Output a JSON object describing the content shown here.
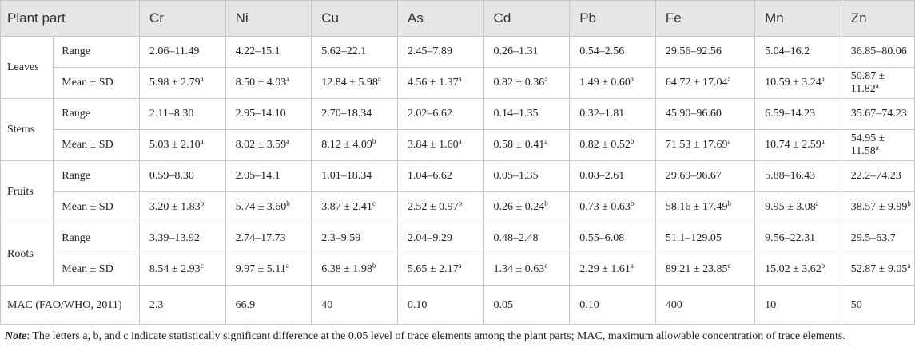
{
  "header": {
    "plant_part": "Plant part",
    "columns": [
      "Cr",
      "Ni",
      "Cu",
      "As",
      "Cd",
      "Pb",
      "Fe",
      "Mn",
      "Zn"
    ]
  },
  "groups": [
    {
      "part": "Leaves",
      "rows": [
        {
          "label": "Range",
          "cells": [
            {
              "v": "2.06–11.49"
            },
            {
              "v": "4.22–15.1"
            },
            {
              "v": "5.62–22.1"
            },
            {
              "v": "2.45–7.89"
            },
            {
              "v": "0.26–1.31"
            },
            {
              "v": "0.54–2.56"
            },
            {
              "v": "29.56–92.56"
            },
            {
              "v": "5.04–16.2"
            },
            {
              "v": "36.85–80.06"
            }
          ]
        },
        {
          "label": "Mean ± SD",
          "cells": [
            {
              "v": "5.98 ± 2.79",
              "s": "a"
            },
            {
              "v": "8.50 ± 4.03",
              "s": "a"
            },
            {
              "v": "12.84 ± 5.98",
              "s": "a"
            },
            {
              "v": "4.56 ± 1.37",
              "s": "a"
            },
            {
              "v": "0.82 ± 0.36",
              "s": "a"
            },
            {
              "v": "1.49 ± 0.60",
              "s": "a"
            },
            {
              "v": "64.72 ± 17.04",
              "s": "a"
            },
            {
              "v": "10.59 ± 3.24",
              "s": "a"
            },
            {
              "v": "50.87 ± 11.82",
              "s": "a"
            }
          ]
        }
      ]
    },
    {
      "part": "Stems",
      "rows": [
        {
          "label": "Range",
          "cells": [
            {
              "v": "2.11–8.30"
            },
            {
              "v": "2.95–14.10"
            },
            {
              "v": "2.70–18.34"
            },
            {
              "v": "2.02–6.62"
            },
            {
              "v": "0.14–1.35"
            },
            {
              "v": "0.32–1.81"
            },
            {
              "v": "45.90–96.60"
            },
            {
              "v": "6.59–14.23"
            },
            {
              "v": "35.67–74.23"
            }
          ]
        },
        {
          "label": "Mean ± SD",
          "cells": [
            {
              "v": "5.03 ± 2.10",
              "s": "a"
            },
            {
              "v": "8.02 ± 3.59",
              "s": "a"
            },
            {
              "v": "8.12 ± 4.09",
              "s": "b"
            },
            {
              "v": "3.84 ± 1.60",
              "s": "a"
            },
            {
              "v": "0.58 ± 0.41",
              "s": "a"
            },
            {
              "v": "0.82 ± 0.52",
              "s": "b"
            },
            {
              "v": "71.53 ± 17.69",
              "s": "a"
            },
            {
              "v": "10.74 ± 2.59",
              "s": "a"
            },
            {
              "v": "54.95 ± 11.58",
              "s": "a"
            }
          ]
        }
      ]
    },
    {
      "part": "Fruits",
      "rows": [
        {
          "label": "Range",
          "cells": [
            {
              "v": "0.59–8.30"
            },
            {
              "v": "2.05–14.1"
            },
            {
              "v": "1.01–18.34"
            },
            {
              "v": "1.04–6.62"
            },
            {
              "v": "0.05–1.35"
            },
            {
              "v": "0.08–2.61"
            },
            {
              "v": "29.69–96.67"
            },
            {
              "v": "5.88–16.43"
            },
            {
              "v": "22.2–74.23"
            }
          ]
        },
        {
          "label": "Mean ± SD",
          "cells": [
            {
              "v": "3.20 ± 1.83",
              "s": "b"
            },
            {
              "v": "5.74 ± 3.60",
              "s": "b"
            },
            {
              "v": "3.87 ± 2.41",
              "s": "c"
            },
            {
              "v": "2.52 ± 0.97",
              "s": "b"
            },
            {
              "v": "0.26 ± 0.24",
              "s": "b"
            },
            {
              "v": "0.73 ± 0.63",
              "s": "b"
            },
            {
              "v": "58.16 ± 17.49",
              "s": "b"
            },
            {
              "v": "9.95 ± 3.08",
              "s": "a"
            },
            {
              "v": "38.57 ± 9.99",
              "s": "b"
            }
          ]
        }
      ]
    },
    {
      "part": "Roots",
      "rows": [
        {
          "label": "Range",
          "cells": [
            {
              "v": "3.39–13.92"
            },
            {
              "v": "2.74–17.73"
            },
            {
              "v": "2.3–9.59"
            },
            {
              "v": "2.04–9.29"
            },
            {
              "v": "0.48–2.48"
            },
            {
              "v": "0.55–6.08"
            },
            {
              "v": "51.1–129.05"
            },
            {
              "v": "9.56–22.31"
            },
            {
              "v": "29.5–63.7"
            }
          ]
        },
        {
          "label": "Mean ± SD",
          "cells": [
            {
              "v": "8.54 ± 2.93",
              "s": "c"
            },
            {
              "v": "9.97 ± 5.11",
              "s": "a"
            },
            {
              "v": "6.38 ± 1.98",
              "s": "b"
            },
            {
              "v": "5.65 ± 2.17",
              "s": "a"
            },
            {
              "v": "1.34 ± 0.63",
              "s": "c"
            },
            {
              "v": "2.29 ± 1.61",
              "s": "a"
            },
            {
              "v": "89.21 ± 23.85",
              "s": "c"
            },
            {
              "v": "15.02 ± 3.62",
              "s": "b"
            },
            {
              "v": "52.87 ± 9.05",
              "s": "a"
            }
          ]
        }
      ]
    }
  ],
  "mac": {
    "label": "MAC (FAO/WHO, 2011)",
    "values": [
      "2.3",
      "66.9",
      "40",
      "0.10",
      "0.05",
      "0.10",
      "400",
      "10",
      "50"
    ]
  },
  "note": {
    "label": "Note",
    "text": ": The letters a, b, and c indicate statistically significant difference at the 0.05 level of trace elements among the plant parts; MAC, maximum allowable concentration of trace elements."
  }
}
